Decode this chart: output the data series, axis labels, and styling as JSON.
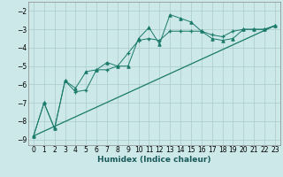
{
  "xlabel": "Humidex (Indice chaleur)",
  "ylabel": "",
  "bg_color": "#cce8e8",
  "grid_color": "#aacccc",
  "line_color": "#1a7a6a",
  "xlim": [
    -0.5,
    23.5
  ],
  "ylim": [
    -9.3,
    -1.5
  ],
  "xticks": [
    0,
    1,
    2,
    3,
    4,
    5,
    6,
    7,
    8,
    9,
    10,
    11,
    12,
    13,
    14,
    15,
    16,
    17,
    18,
    19,
    20,
    21,
    22,
    23
  ],
  "yticks": [
    -9,
    -8,
    -7,
    -6,
    -5,
    -4,
    -3,
    -2
  ],
  "line1_x": [
    0,
    1,
    2,
    3,
    4,
    5,
    6,
    7,
    8,
    9,
    10,
    11,
    12,
    13,
    14,
    15,
    16,
    17,
    18,
    19,
    20,
    21,
    22,
    23
  ],
  "line1_y": [
    -8.8,
    -7.0,
    -8.4,
    -5.8,
    -6.2,
    -5.3,
    -5.2,
    -4.8,
    -5.0,
    -5.0,
    -3.5,
    -2.9,
    -3.8,
    -2.2,
    -2.4,
    -2.6,
    -3.1,
    -3.5,
    -3.6,
    -3.5,
    -3.0,
    -3.0,
    -3.0,
    -2.8
  ],
  "line2_x": [
    0,
    1,
    2,
    3,
    4,
    5,
    6,
    7,
    8,
    9,
    10,
    11,
    12,
    13,
    14,
    15,
    16,
    17,
    18,
    19,
    20,
    21,
    22,
    23
  ],
  "line2_y": [
    -8.8,
    -7.0,
    -8.4,
    -5.8,
    -6.4,
    -6.3,
    -5.2,
    -5.2,
    -5.0,
    -4.3,
    -3.6,
    -3.5,
    -3.6,
    -3.1,
    -3.1,
    -3.1,
    -3.1,
    -3.3,
    -3.4,
    -3.1,
    -3.0,
    -3.0,
    -3.0,
    -2.8
  ],
  "line3_x": [
    0,
    23
  ],
  "line3_y": [
    -8.8,
    -2.8
  ]
}
